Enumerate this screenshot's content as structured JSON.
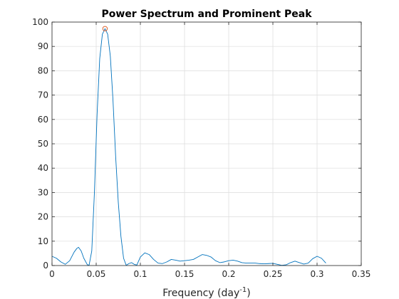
{
  "chart_data": {
    "type": "line",
    "title": "Power Spectrum and Prominent Peak",
    "xlabel": "Frequency (day",
    "xlabel_superscript": "-1",
    "xlabel_suffix": ")",
    "ylabel": "",
    "xlim": [
      0,
      0.35
    ],
    "ylim": [
      0,
      100
    ],
    "xticks": [
      0,
      0.05,
      0.1,
      0.15,
      0.2,
      0.25,
      0.3,
      0.35
    ],
    "xtick_labels": [
      "0",
      "0.05",
      "0.1",
      "0.15",
      "0.2",
      "0.25",
      "0.3",
      "0.35"
    ],
    "yticks": [
      0,
      10,
      20,
      30,
      40,
      50,
      60,
      70,
      80,
      90,
      100
    ],
    "ytick_labels": [
      "0",
      "10",
      "20",
      "30",
      "40",
      "50",
      "60",
      "70",
      "80",
      "90",
      "100"
    ],
    "grid": true,
    "colors": {
      "series": "#0072bd",
      "peak": "#d95319",
      "grid": "#dcdcdc",
      "axis": "#262626"
    },
    "series": [
      {
        "x": [
          0,
          0.005,
          0.01,
          0.015,
          0.02,
          0.025,
          0.028,
          0.03,
          0.033,
          0.036,
          0.04,
          0.042,
          0.045,
          0.048,
          0.051,
          0.054,
          0.057,
          0.06,
          0.063,
          0.066,
          0.069,
          0.072,
          0.075,
          0.078,
          0.081,
          0.084,
          0.087,
          0.09,
          0.093,
          0.096,
          0.1,
          0.105,
          0.11,
          0.115,
          0.12,
          0.125,
          0.13,
          0.135,
          0.14,
          0.145,
          0.15,
          0.155,
          0.16,
          0.165,
          0.17,
          0.175,
          0.18,
          0.185,
          0.19,
          0.195,
          0.2,
          0.205,
          0.21,
          0.215,
          0.22,
          0.225,
          0.23,
          0.235,
          0.24,
          0.245,
          0.25,
          0.255,
          0.26,
          0.265,
          0.27,
          0.275,
          0.28,
          0.285,
          0.29,
          0.295,
          0.3,
          0.305,
          0.31
        ],
        "y": [
          3.8,
          3.0,
          1.5,
          0.5,
          2.0,
          5.5,
          7.0,
          7.5,
          6.0,
          3.0,
          0.3,
          0.2,
          6.0,
          30.0,
          62.0,
          85.0,
          95.0,
          97.3,
          95.0,
          86.0,
          68.0,
          45.0,
          26.0,
          12.0,
          3.0,
          0.1,
          0.8,
          1.2,
          0.5,
          0.2,
          3.5,
          5.2,
          4.5,
          2.5,
          1.0,
          0.8,
          1.5,
          2.5,
          2.2,
          1.8,
          2.0,
          2.2,
          2.5,
          3.5,
          4.5,
          4.2,
          3.5,
          2.0,
          1.2,
          1.5,
          2.0,
          2.2,
          1.8,
          1.2,
          1.0,
          1.0,
          1.0,
          0.8,
          0.7,
          0.8,
          0.9,
          0.5,
          0.1,
          0.3,
          1.2,
          1.8,
          1.2,
          0.6,
          1.0,
          2.8,
          3.8,
          3.0,
          1.0
        ]
      }
    ],
    "peak": {
      "x": 0.06,
      "y": 97.3
    }
  }
}
